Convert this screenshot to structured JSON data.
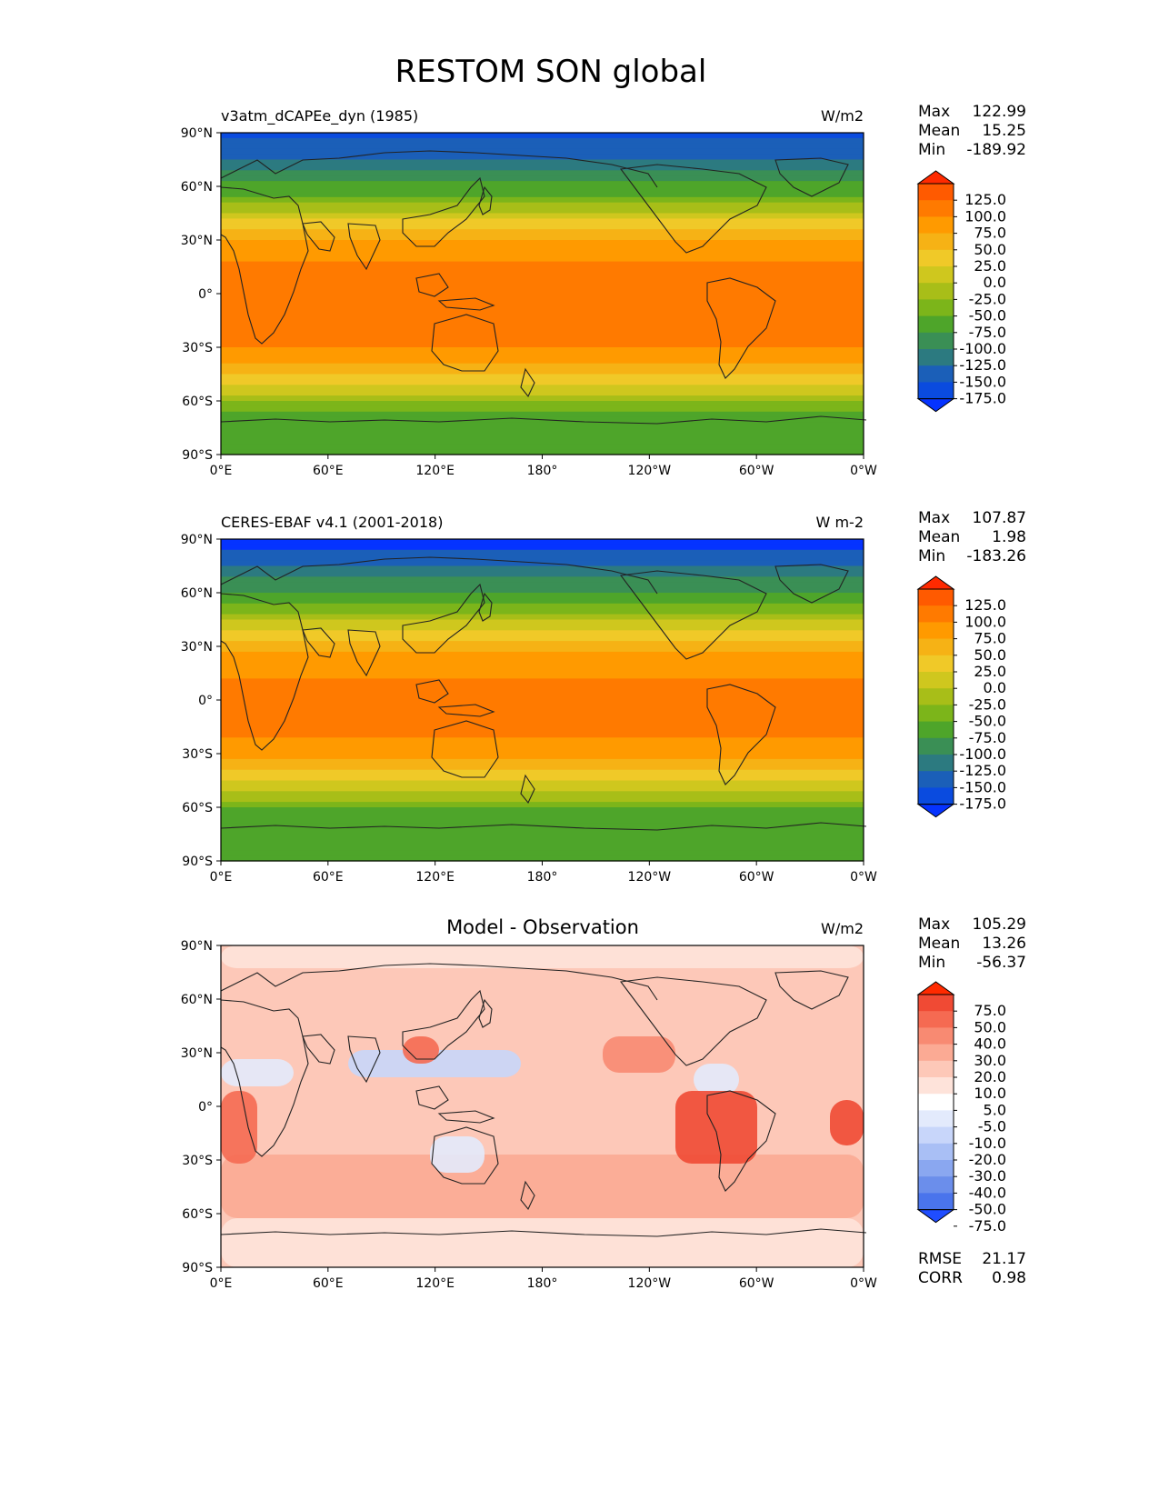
{
  "title": "RESTOM SON global",
  "chart_data": {
    "type": "heatmap",
    "projection": "cylindrical equidistant, centered on 180°",
    "xticks": [
      "0°E",
      "60°E",
      "120°E",
      "180°",
      "120°W",
      "60°W",
      "0°W"
    ],
    "yticks": [
      "90°N",
      "60°N",
      "30°N",
      "0°",
      "30°S",
      "60°S",
      "90°S"
    ],
    "panels": [
      {
        "id": "model",
        "title_left": "v3atm_dCAPEe_dyn (1985)",
        "title_center": "",
        "units": "W/m2",
        "stats": [
          [
            "Max",
            "122.99"
          ],
          [
            "Mean",
            "15.25"
          ],
          [
            "Min",
            "-189.92"
          ]
        ],
        "colorbar_labels": [
          "125.0",
          "100.0",
          "75.0",
          "50.0",
          "25.0",
          "0.0",
          "-25.0",
          "-50.0",
          "-75.0",
          "-100.0",
          "-125.0",
          "-150.0",
          "-175.0"
        ],
        "colorbar_colors": [
          "#ff2a00",
          "#ff5a00",
          "#ff7a00",
          "#ff9a00",
          "#f6b215",
          "#f0c928",
          "#cfc71e",
          "#a8be18",
          "#7cb51a",
          "#4ea52a",
          "#3a8f55",
          "#2c7a80",
          "#1b5fb8",
          "#0a4bdf",
          "#0533ff"
        ]
      },
      {
        "id": "obs",
        "title_left": "CERES-EBAF v4.1 (2001-2018)",
        "title_center": "",
        "units": "W m-2",
        "stats": [
          [
            "Max",
            "107.87"
          ],
          [
            "Mean",
            "1.98"
          ],
          [
            "Min",
            "-183.26"
          ]
        ],
        "colorbar_labels": [
          "125.0",
          "100.0",
          "75.0",
          "50.0",
          "25.0",
          "0.0",
          "-25.0",
          "-50.0",
          "-75.0",
          "-100.0",
          "-125.0",
          "-150.0",
          "-175.0"
        ],
        "colorbar_colors": [
          "#ff2a00",
          "#ff5a00",
          "#ff7a00",
          "#ff9a00",
          "#f6b215",
          "#f0c928",
          "#cfc71e",
          "#a8be18",
          "#7cb51a",
          "#4ea52a",
          "#3a8f55",
          "#2c7a80",
          "#1b5fb8",
          "#0a4bdf",
          "#0533ff"
        ]
      },
      {
        "id": "diff",
        "title_left": "",
        "title_center": "Model - Observation",
        "units": "W/m2",
        "stats": [
          [
            "Max",
            "105.29"
          ],
          [
            "Mean",
            "13.26"
          ],
          [
            "Min",
            "-56.37"
          ]
        ],
        "colorbar_labels": [
          "75.0",
          "50.0",
          "40.0",
          "30.0",
          "20.0",
          "10.0",
          "5.0",
          "-5.0",
          "-10.0",
          "-20.0",
          "-30.0",
          "-40.0",
          "-50.0",
          "-75.0"
        ],
        "colorbar_colors": [
          "#ff2a00",
          "#f04a34",
          "#f56a52",
          "#f88a72",
          "#fbaa94",
          "#fdc8b8",
          "#fee3da",
          "#ffffff",
          "#e3eafc",
          "#c8d6fa",
          "#a9bff5",
          "#8aa7f0",
          "#6b8eeb",
          "#4a74ec",
          "#1f4dff"
        ],
        "extra_stats": [
          [
            "RMSE",
            "21.17"
          ],
          [
            "CORR",
            "0.98"
          ]
        ]
      }
    ],
    "zonal_profile_model": [
      {
        "lat": 90,
        "value": -175
      },
      {
        "lat": 80,
        "value": -160
      },
      {
        "lat": 70,
        "value": -120
      },
      {
        "lat": 60,
        "value": -90
      },
      {
        "lat": 50,
        "value": -40
      },
      {
        "lat": 40,
        "value": 20
      },
      {
        "lat": 30,
        "value": 55
      },
      {
        "lat": 20,
        "value": 75
      },
      {
        "lat": 10,
        "value": 95
      },
      {
        "lat": 0,
        "value": 100
      },
      {
        "lat": -10,
        "value": 95
      },
      {
        "lat": -20,
        "value": 90
      },
      {
        "lat": -30,
        "value": 75
      },
      {
        "lat": -40,
        "value": 40
      },
      {
        "lat": -50,
        "value": 0
      },
      {
        "lat": -60,
        "value": -60
      },
      {
        "lat": -70,
        "value": -90
      },
      {
        "lat": -80,
        "value": -85
      },
      {
        "lat": -90,
        "value": -85
      }
    ],
    "zonal_profile_obs": [
      {
        "lat": 90,
        "value": -180
      },
      {
        "lat": 80,
        "value": -165
      },
      {
        "lat": 70,
        "value": -125
      },
      {
        "lat": 60,
        "value": -95
      },
      {
        "lat": 50,
        "value": -50
      },
      {
        "lat": 40,
        "value": 10
      },
      {
        "lat": 30,
        "value": 45
      },
      {
        "lat": 20,
        "value": 65
      },
      {
        "lat": 10,
        "value": 80
      },
      {
        "lat": 0,
        "value": 85
      },
      {
        "lat": -10,
        "value": 80
      },
      {
        "lat": -20,
        "value": 75
      },
      {
        "lat": -30,
        "value": 55
      },
      {
        "lat": -40,
        "value": 20
      },
      {
        "lat": -50,
        "value": -20
      },
      {
        "lat": -60,
        "value": -75
      },
      {
        "lat": -70,
        "value": -100
      },
      {
        "lat": -80,
        "value": -95
      },
      {
        "lat": -90,
        "value": -95
      }
    ]
  }
}
